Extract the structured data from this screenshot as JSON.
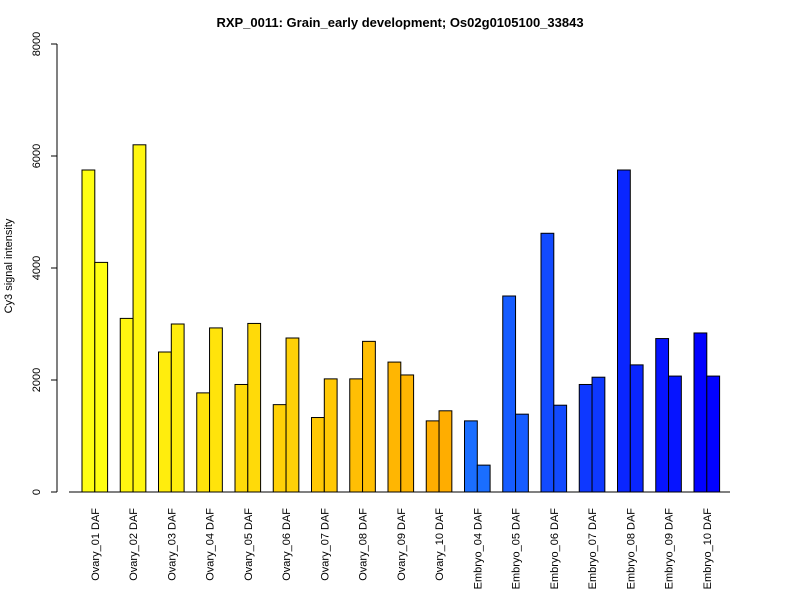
{
  "chart_data": {
    "type": "bar",
    "title": "RXP_0011: Grain_early development; Os02g0105100_33843",
    "xlabel": "",
    "ylabel": "Cy3 signal intensity",
    "ylim": [
      0,
      8000
    ],
    "yticks": [
      "0",
      "2000",
      "4000",
      "6000",
      "8000"
    ],
    "categories": [
      "Ovary_01 DAF",
      "Ovary_02 DAF",
      "Ovary_03 DAF",
      "Ovary_04 DAF",
      "Ovary_05 DAF",
      "Ovary_06 DAF",
      "Ovary_07 DAF",
      "Ovary_08 DAF",
      "Ovary_09 DAF",
      "Ovary_10 DAF",
      "Embryo_04 DAF",
      "Embryo_05 DAF",
      "Embryo_06 DAF",
      "Embryo_07 DAF",
      "Embryo_08 DAF",
      "Embryo_09 DAF",
      "Embryo_10 DAF"
    ],
    "series": [
      {
        "values": [
          5750,
          3100,
          2500,
          1770,
          1920,
          1560,
          1330,
          2020,
          2320,
          1270,
          1270,
          3500,
          4620,
          1920,
          5750,
          2740,
          2840
        ]
      },
      {
        "values": [
          4100,
          6200,
          3000,
          2930,
          3010,
          2750,
          2020,
          2690,
          2090,
          1450,
          480,
          1390,
          1550,
          2050,
          2270,
          2070,
          2070
        ]
      }
    ],
    "colors": [
      "#FFFF12",
      "#FFF610",
      "#FFED0D",
      "#FFE30B",
      "#FFDA09",
      "#FFD107",
      "#FFC805",
      "#FFBF04",
      "#FFB602",
      "#FFAD00",
      "#1A6EFF",
      "#165CFF",
      "#124AFF",
      "#0E38FF",
      "#0A26FF",
      "#0614FF",
      "#0202FF"
    ],
    "grid": false,
    "legend": "none"
  }
}
